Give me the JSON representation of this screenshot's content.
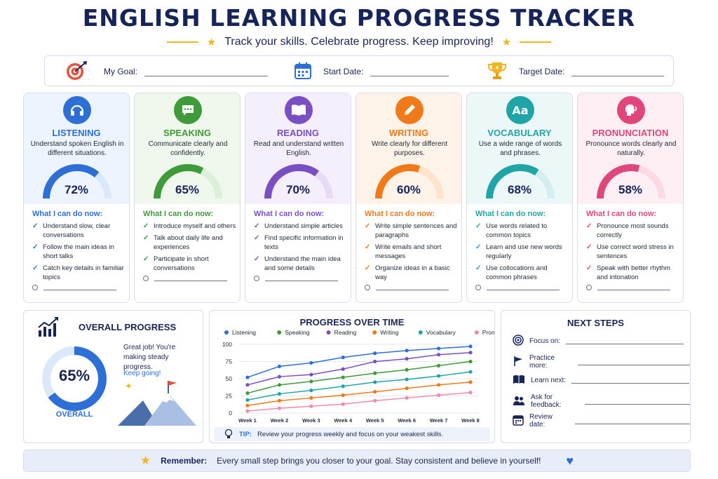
{
  "header": {
    "title": "ENGLISH LEARNING PROGRESS TRACKER",
    "subtitle": "Track your skills. Celebrate progress. Keep improving!"
  },
  "goal_bar": {
    "goal_label": "My Goal:",
    "start_label": "Start Date:",
    "target_label": "Target Date:"
  },
  "skills": [
    {
      "name": "LISTENING",
      "desc": "Understand spoken English in different situations.",
      "percent": 72,
      "percent_label": "72%",
      "color": "#2d6fd6",
      "light": "#dbe7fb",
      "bg": "#eef4fd",
      "can_do_title": "What I can do now:",
      "items": [
        "Understand slow, clear conversations",
        "Follow the main ideas in short talks",
        "Catch key details in familiar topics"
      ],
      "icon": "headphones-icon"
    },
    {
      "name": "SPEAKING",
      "desc": "Communicate clearly and confidently.",
      "percent": 65,
      "percent_label": "65%",
      "color": "#3f9a3a",
      "light": "#dcefd9",
      "bg": "#f0f8ee",
      "can_do_title": "What I can do now:",
      "items": [
        "Introduce myself and others",
        "Talk about daily life and experiences",
        "Participate in short conversations"
      ],
      "icon": "speech-bubble-icon"
    },
    {
      "name": "READING",
      "desc": "Read and understand written English.",
      "percent": 70,
      "percent_label": "70%",
      "color": "#7a4fc4",
      "light": "#e6dcf6",
      "bg": "#f4effb",
      "can_do_title": "What I can do now:",
      "items": [
        "Understand simple articles",
        "Find specific information in texts",
        "Understand the main idea and some details"
      ],
      "icon": "book-icon"
    },
    {
      "name": "WRITING",
      "desc": "Write clearly for different purposes.",
      "percent": 60,
      "percent_label": "60%",
      "color": "#f07a1a",
      "light": "#fde3cc",
      "bg": "#fef3e9",
      "can_do_title": "What I can do now:",
      "items": [
        "Write simple sentences and paragraphs",
        "Write emails and short messages",
        "Organize ideas in a basic way"
      ],
      "icon": "pencil-icon"
    },
    {
      "name": "VOCABULARY",
      "desc": "Use a wide range of words and phrases.",
      "percent": 68,
      "percent_label": "68%",
      "color": "#1fa5a8",
      "light": "#d3eeee",
      "bg": "#ecf7f7",
      "can_do_title": "What I can do now:",
      "items": [
        "Use words related to common topics",
        "Learn and use new words regularly",
        "Use collocations and common phrases"
      ],
      "icon": "aa-letters-icon"
    },
    {
      "name": "PRONUNCIATION",
      "desc": "Pronounce words clearly and naturally.",
      "percent": 58,
      "percent_label": "58%",
      "color": "#e0457b",
      "light": "#fbd9e5",
      "bg": "#fdeff4",
      "can_do_title": "What I can do now:",
      "items": [
        "Pronounce most sounds correctly",
        "Use correct word stress in sentences",
        "Speak with better rhythm and intonation"
      ],
      "icon": "speaking-head-icon"
    }
  ],
  "overall": {
    "title": "OVERALL PROGRESS",
    "percent": 65,
    "percent_label": "65%",
    "caption": "OVERALL",
    "message": "Great job! You're making steady progress.",
    "keep_going": "Keep going!"
  },
  "chart_data": {
    "type": "line",
    "title": "PROGRESS OVER TIME",
    "categories": [
      "Week 1",
      "Week 2",
      "Week 3",
      "Week 4",
      "Week 5",
      "Week 6",
      "Week 7",
      "Week 8"
    ],
    "ylim": [
      0,
      100
    ],
    "yticks": [
      0,
      25,
      50,
      75,
      100
    ],
    "grid": true,
    "legend_position": "top",
    "series": [
      {
        "name": "Listening",
        "color": "#2d6fd6",
        "values": [
          52,
          68,
          73,
          81,
          87,
          91,
          94,
          97
        ]
      },
      {
        "name": "Speaking",
        "color": "#3f9a3a",
        "values": [
          29,
          41,
          46,
          52,
          58,
          63,
          69,
          75
        ]
      },
      {
        "name": "Reading",
        "color": "#7a4fc4",
        "values": [
          41,
          53,
          56,
          64,
          75,
          79,
          85,
          88
        ]
      },
      {
        "name": "Writing",
        "color": "#f07a1a",
        "values": [
          11,
          18,
          22,
          26,
          31,
          36,
          41,
          45
        ]
      },
      {
        "name": "Vocabulary",
        "color": "#1fa5a8",
        "values": [
          19,
          28,
          33,
          39,
          45,
          49,
          54,
          60
        ]
      },
      {
        "name": "Pronunciation",
        "color": "#f08aa8",
        "values": [
          3,
          7,
          10,
          13,
          18,
          22,
          26,
          30
        ]
      }
    ]
  },
  "tip": {
    "label": "TIP:",
    "text": "Review your progress weekly and focus on your weakest skills."
  },
  "next_steps": {
    "title": "NEXT STEPS",
    "items": [
      {
        "label": "Focus on:",
        "icon": "target-icon"
      },
      {
        "label": "Practice more:",
        "icon": "flag-icon"
      },
      {
        "label": "Learn next:",
        "icon": "open-book-icon"
      },
      {
        "label": "Ask for feedback:",
        "icon": "people-icon"
      },
      {
        "label": "Review date:",
        "icon": "calendar-icon"
      }
    ]
  },
  "remember": {
    "label": "Remember:",
    "text": "Every small step brings you closer to your goal. Stay consistent and believe in yourself!"
  }
}
